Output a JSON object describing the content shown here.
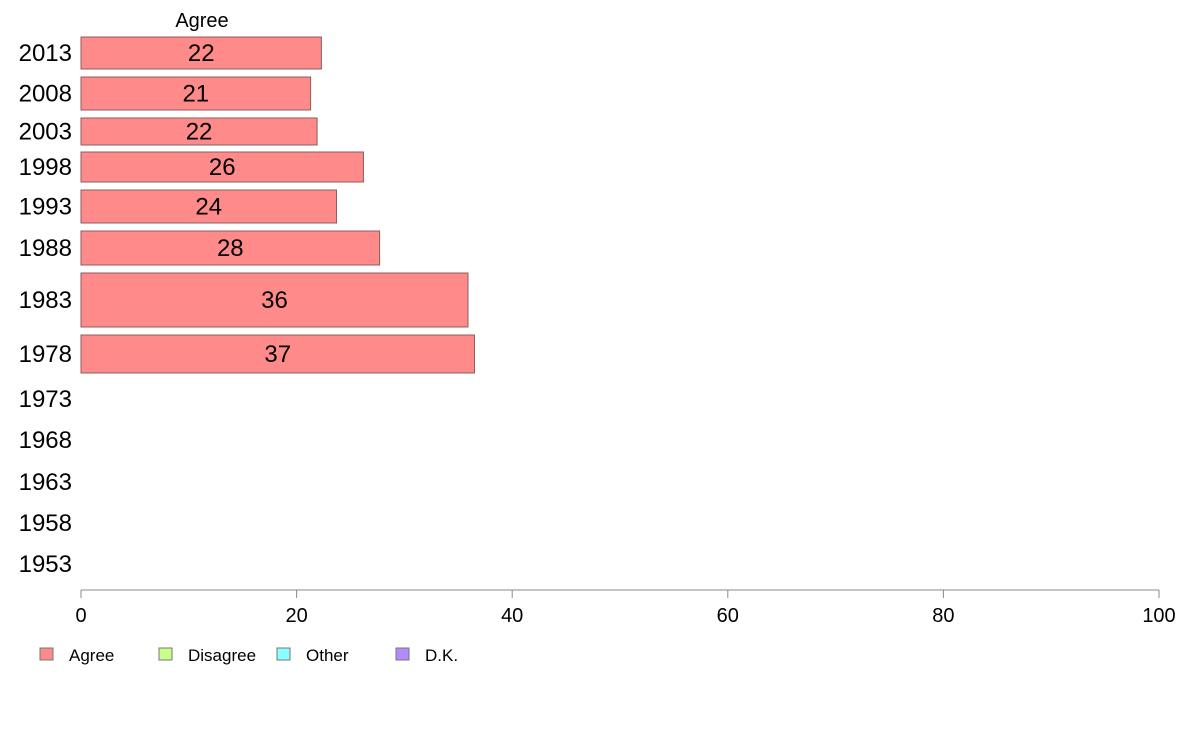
{
  "chart_data": {
    "type": "bar",
    "orientation": "horizontal",
    "series_header": "Agree",
    "categories": [
      "2013",
      "2008",
      "2003",
      "1998",
      "1993",
      "1988",
      "1983",
      "1978",
      "1973",
      "1968",
      "1963",
      "1958",
      "1953"
    ],
    "series": [
      {
        "name": "Agree",
        "values": [
          22.3,
          21.3,
          21.9,
          26.2,
          23.7,
          27.7,
          35.9,
          36.5,
          null,
          null,
          null,
          null,
          null
        ],
        "labels": [
          "22",
          "21",
          "22",
          "26",
          "24",
          "28",
          "36",
          "37",
          "",
          "",
          "",
          "",
          ""
        ]
      }
    ],
    "xlim": [
      0,
      100
    ],
    "xticks": [
      0,
      20,
      40,
      60,
      80,
      100
    ],
    "xtick_labels": [
      "0",
      "20",
      "40",
      "60",
      "80",
      "100"
    ],
    "grid": false,
    "legend_position": "bottom-left",
    "legend": [
      {
        "label": "Agree",
        "color": "#ff8a8a"
      },
      {
        "label": "Disagree",
        "color": "#c8ff8a"
      },
      {
        "label": "Other",
        "color": "#8affff"
      },
      {
        "label": "D.K.",
        "color": "#b48aff"
      }
    ],
    "colors": {
      "bar_fill": "#ff8a8a",
      "bar_stroke": "#8c5c5c",
      "axis": "#888888"
    }
  }
}
